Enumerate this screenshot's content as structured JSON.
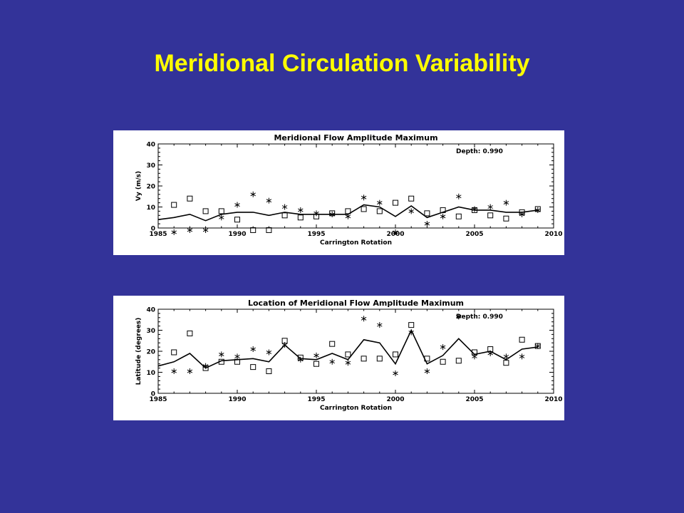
{
  "slide": {
    "title": "Meridional Circulation Variability"
  },
  "chart_data": [
    {
      "type": "line",
      "title": "Meridional Flow Amplitude Maximum",
      "xlabel": "Carrington Rotation",
      "ylabel": "Vy (m/s)",
      "annotation": "Depth: 0.990",
      "xlim": [
        1985,
        2010
      ],
      "ylim": [
        0,
        40
      ],
      "xticks": [
        1985,
        1990,
        1995,
        2000,
        2005,
        2010
      ],
      "yticks": [
        0,
        10,
        20,
        30,
        40
      ],
      "series": [
        {
          "marker": "line",
          "x": [
            1985,
            1986,
            1987,
            1988,
            1989,
            1990,
            1991,
            1992,
            1993,
            1994,
            1995,
            1996,
            1997,
            1998,
            1999,
            2000,
            2001,
            2002,
            2003,
            2004,
            2005,
            2006,
            2007,
            2008,
            2009
          ],
          "y": [
            4,
            5,
            6.5,
            3.5,
            6.5,
            7.5,
            7.5,
            6,
            7.5,
            6.5,
            6.5,
            6.5,
            6.5,
            11,
            10,
            5.5,
            10.5,
            5,
            7.5,
            10,
            8.5,
            8.5,
            7.5,
            7.5,
            8.5
          ]
        },
        {
          "marker": "square",
          "x": [
            1986,
            1987,
            1988,
            1989,
            1990,
            1991,
            1992,
            1993,
            1994,
            1995,
            1996,
            1997,
            1998,
            1999,
            2000,
            2001,
            2002,
            2003,
            2004,
            2005,
            2006,
            2007,
            2008,
            2009
          ],
          "y": [
            11,
            14,
            8,
            8,
            4,
            -1,
            -1,
            6,
            5,
            5.5,
            7,
            8,
            9,
            8,
            12,
            14,
            7,
            8.5,
            5.5,
            8.5,
            6,
            4.5,
            7.5,
            9
          ]
        },
        {
          "marker": "asterisk",
          "x": [
            1986,
            1987,
            1988,
            1989,
            1990,
            1991,
            1992,
            1993,
            1994,
            1995,
            1996,
            1997,
            1998,
            1999,
            2000,
            2001,
            2002,
            2003,
            2004,
            2005,
            2006,
            2007,
            2008,
            2009
          ],
          "y": [
            -2,
            -1,
            -1,
            5,
            11,
            16,
            13,
            10,
            8.5,
            7,
            6.5,
            5.5,
            14.5,
            12,
            -2,
            8,
            2,
            5.5,
            15,
            9,
            10,
            12,
            6.5,
            8.5
          ]
        }
      ]
    },
    {
      "type": "line",
      "title": "Location of Meridional Flow Amplitude Maximum",
      "xlabel": "Carrington Rotation",
      "ylabel": "Latitude (degrees)",
      "annotation": "Depth: 0.990",
      "xlim": [
        1985,
        2010
      ],
      "ylim": [
        0,
        40
      ],
      "xticks": [
        1985,
        1990,
        1995,
        2000,
        2005,
        2010
      ],
      "yticks": [
        0,
        10,
        20,
        30,
        40
      ],
      "series": [
        {
          "marker": "line",
          "x": [
            1985,
            1986,
            1987,
            1988,
            1989,
            1990,
            1991,
            1992,
            1993,
            1994,
            1995,
            1996,
            1997,
            1998,
            1999,
            2000,
            2001,
            2002,
            2003,
            2004,
            2005,
            2006,
            2007,
            2008,
            2009
          ],
          "y": [
            13,
            15,
            19,
            12,
            15.5,
            16,
            16.5,
            15,
            23,
            16.5,
            16,
            19,
            16,
            25.5,
            24,
            14,
            30,
            14,
            18,
            26,
            18.5,
            20,
            16,
            21,
            22
          ]
        },
        {
          "marker": "square",
          "x": [
            1986,
            1987,
            1988,
            1989,
            1990,
            1991,
            1992,
            1993,
            1994,
            1995,
            1996,
            1997,
            1998,
            1999,
            2000,
            2001,
            2002,
            2003,
            2004,
            2005,
            2006,
            2007,
            2008,
            2009
          ],
          "y": [
            19.5,
            28.5,
            12,
            15,
            15,
            12.5,
            10.5,
            25,
            17,
            14,
            23.5,
            18.5,
            16.5,
            16.5,
            18.5,
            32.5,
            16.5,
            15,
            15.5,
            19.5,
            21,
            14.5,
            25.5,
            22.5
          ]
        },
        {
          "marker": "asterisk",
          "x": [
            1986,
            1987,
            1988,
            1989,
            1990,
            1991,
            1992,
            1993,
            1994,
            1995,
            1996,
            1997,
            1998,
            1999,
            2000,
            2001,
            2002,
            2003,
            2004,
            2005,
            2006,
            2007,
            2008,
            2009
          ],
          "y": [
            10.5,
            10.5,
            13,
            18.5,
            17.5,
            21,
            19.5,
            23,
            16,
            18,
            15,
            14.5,
            35.5,
            32.5,
            9.5,
            29,
            10.5,
            22,
            36.5,
            17.5,
            19,
            17.5,
            17.5,
            22.5
          ]
        }
      ]
    }
  ]
}
